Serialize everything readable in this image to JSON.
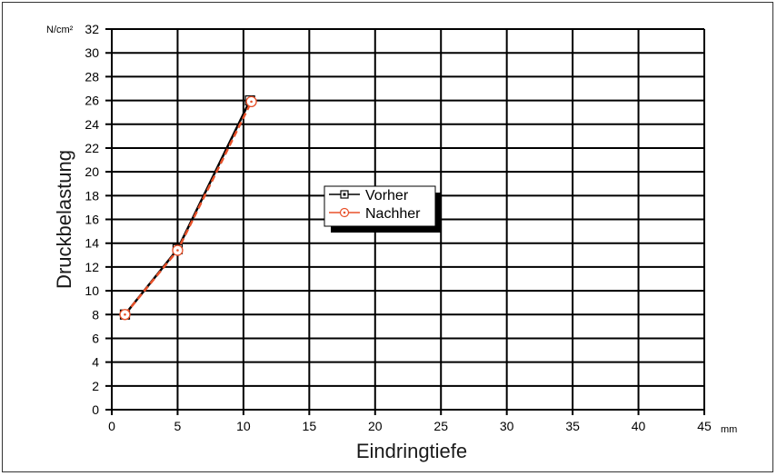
{
  "chart_data": {
    "type": "line",
    "xlabel": "Eindringtiefe",
    "ylabel": "Druckbelastung",
    "x_unit": "mm",
    "y_unit": "N/cm²",
    "xlim": [
      0,
      45
    ],
    "ylim": [
      0,
      32
    ],
    "x_ticks": [
      0,
      5,
      10,
      15,
      20,
      25,
      30,
      35,
      40,
      45
    ],
    "y_ticks": [
      0,
      2,
      4,
      6,
      8,
      10,
      12,
      14,
      16,
      18,
      20,
      22,
      24,
      26,
      28,
      30,
      32
    ],
    "grid": true,
    "legend_position": "center",
    "series": [
      {
        "name": "Vorher",
        "color": "#000000",
        "marker": "square",
        "x": [
          1,
          5,
          10.5
        ],
        "y": [
          8,
          13.5,
          26
        ]
      },
      {
        "name": "Nachher",
        "color": "#e8512a",
        "marker": "circle",
        "dashed": true,
        "x": [
          1,
          5,
          10.6
        ],
        "y": [
          8,
          13.4,
          25.9
        ]
      }
    ]
  }
}
